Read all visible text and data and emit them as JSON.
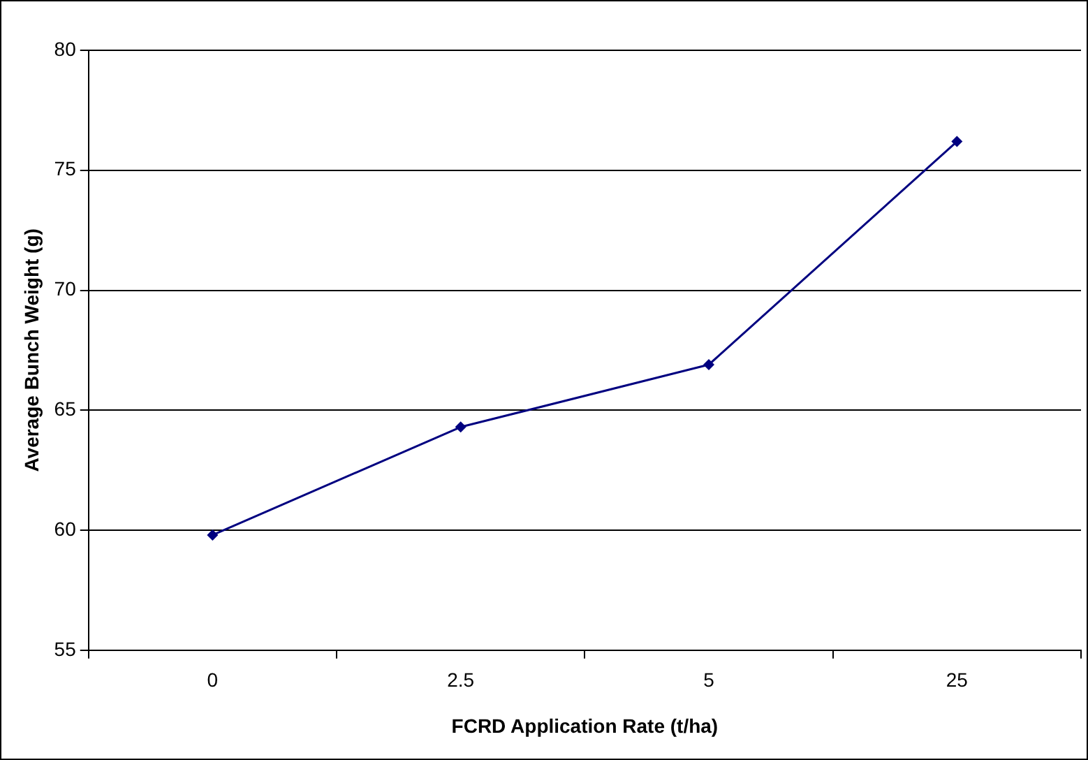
{
  "chart_data": {
    "type": "line",
    "xlabel": "FCRD Application Rate (t/ha)",
    "ylabel": "Average Bunch Weight (g)",
    "categories": [
      "0",
      "2.5",
      "5",
      "25"
    ],
    "series": [
      {
        "color": "#000080",
        "values": [
          59.8,
          64.3,
          66.9,
          76.2
        ]
      }
    ],
    "ylim": [
      55,
      80
    ],
    "yticks": [
      55,
      60,
      65,
      70,
      75,
      80
    ],
    "grid": "y",
    "legend": false,
    "marker": "diamond",
    "line_style": "solid"
  }
}
